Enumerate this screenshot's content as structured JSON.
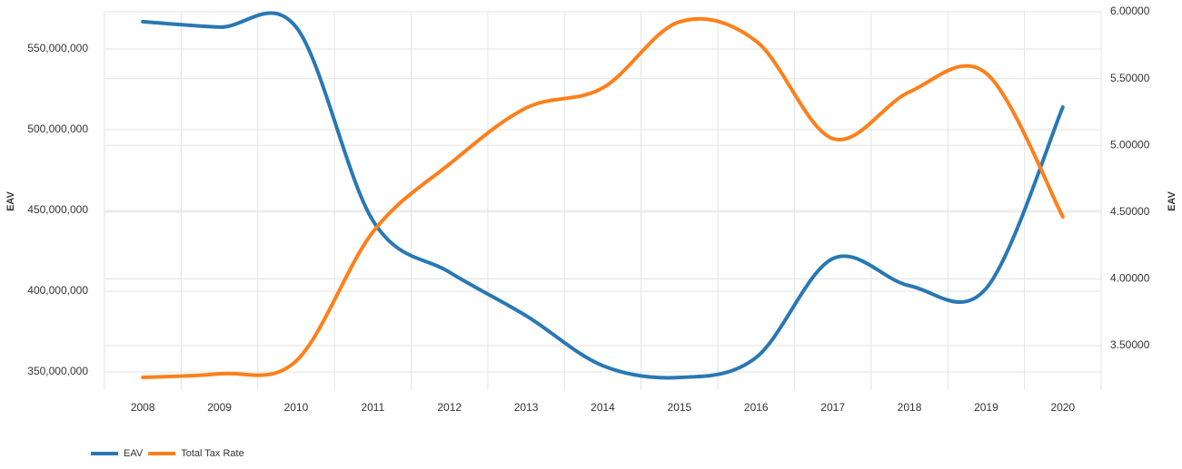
{
  "chart_data": {
    "type": "line",
    "categories": [
      "2008",
      "2009",
      "2010",
      "2011",
      "2012",
      "2013",
      "2014",
      "2015",
      "2016",
      "2017",
      "2018",
      "2019",
      "2020"
    ],
    "series": [
      {
        "name": "EAV",
        "color": "#2878b4",
        "axis": "y",
        "values": [
          566900000,
          563500000,
          563500000,
          443800000,
          411800000,
          384800000,
          353900000,
          346600000,
          359000000,
          420200000,
          403400000,
          401700000,
          514000000
        ]
      },
      {
        "name": "Total Tax Rate",
        "color": "#ff7f1a",
        "axis": "y2",
        "values": [
          3.262,
          3.289,
          3.385,
          4.35,
          4.86,
          5.28,
          5.43,
          5.925,
          5.78,
          5.05,
          5.4,
          5.54,
          4.465
        ]
      }
    ],
    "ylabel": "EAV",
    "y2label": "EAV",
    "ylim": [
      338800000,
      573000000
    ],
    "yticks": [
      {
        "value": 350000000,
        "label": "350,000,000"
      },
      {
        "value": 400000000,
        "label": "400,000,000"
      },
      {
        "value": 450000000,
        "label": "450,000,000"
      },
      {
        "value": 500000000,
        "label": "500,000,000"
      },
      {
        "value": 550000000,
        "label": "550,000,000"
      }
    ],
    "y2lim": [
      3.167,
      6.0
    ],
    "y2ticks": [
      {
        "value": 3.5,
        "label": "3.50000"
      },
      {
        "value": 4.0,
        "label": "4.00000"
      },
      {
        "value": 4.5,
        "label": "4.50000"
      },
      {
        "value": 5.0,
        "label": "5.00000"
      },
      {
        "value": 5.5,
        "label": "5.50000"
      },
      {
        "value": 6.0,
        "label": "6.00000"
      }
    ],
    "grid": true,
    "legend": "bottom-left"
  }
}
